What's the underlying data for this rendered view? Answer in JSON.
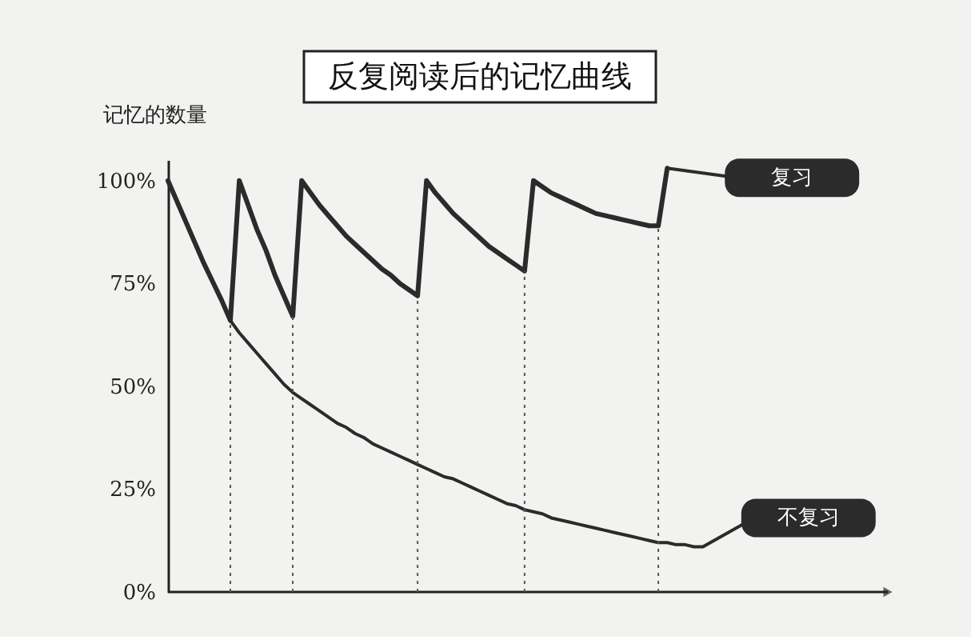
{
  "chart_data": {
    "type": "line",
    "title": "反复阅读后的记忆曲线",
    "ylabel": "记忆的数量",
    "categories": [
      null,
      null,
      null,
      null,
      null,
      null,
      null,
      null,
      null,
      null,
      null,
      null,
      null,
      null,
      null,
      null,
      null,
      null,
      null,
      null,
      null,
      null,
      null,
      null,
      null,
      null,
      null,
      null,
      null,
      null,
      null,
      null,
      null,
      null,
      null,
      null,
      null,
      null,
      null,
      null,
      null,
      null,
      null,
      null,
      null,
      null,
      null,
      null,
      null,
      null,
      null,
      null,
      null,
      null,
      null,
      null,
      null,
      null,
      null,
      null,
      null
    ],
    "series": [
      {
        "name": "复习",
        "color": "#2b2b2b",
        "values": [
          100,
          95,
          90,
          85,
          80,
          75.5,
          71,
          66,
          100,
          94,
          88,
          83,
          77,
          72,
          67,
          100,
          97,
          94,
          91.5,
          89,
          86.5,
          84.5,
          82.5,
          80.5,
          78.5,
          77,
          75,
          73.5,
          72,
          100,
          97,
          94.5,
          92,
          90,
          88,
          86,
          84,
          82.5,
          81,
          79.5,
          78,
          100,
          98.5,
          97,
          96,
          95,
          94,
          93,
          92,
          91.5,
          91,
          90.5,
          90,
          89.5,
          89,
          89,
          103,
          null,
          null,
          null,
          null
        ]
      },
      {
        "name": "不复习",
        "color": "#2b2b2b",
        "values": [
          null,
          null,
          null,
          null,
          null,
          null,
          null,
          66,
          63,
          60.5,
          58,
          55.5,
          53,
          50.5,
          48.5,
          47,
          45.5,
          44,
          42.5,
          41,
          40,
          38.5,
          37.5,
          36,
          35,
          34,
          33,
          32,
          31,
          30,
          29,
          28,
          27.5,
          26.5,
          25.5,
          24.5,
          23.5,
          22.5,
          21.5,
          21,
          20,
          19.5,
          19,
          18,
          17.5,
          17,
          16.5,
          16,
          15.5,
          15,
          14.5,
          14,
          13.5,
          13,
          12.5,
          12,
          12,
          11.5,
          11.5,
          11,
          11
        ]
      }
    ],
    "ylim": [
      0,
      105
    ],
    "yticks": [
      {
        "value": 0,
        "label": "0%"
      },
      {
        "value": 25,
        "label": "25%"
      },
      {
        "value": 50,
        "label": "50%"
      },
      {
        "value": 75,
        "label": "75%"
      },
      {
        "value": 100,
        "label": "100%"
      }
    ],
    "grid": false,
    "legend": "right",
    "tick_labels": "y",
    "marker": "none",
    "line_style": "solid"
  }
}
